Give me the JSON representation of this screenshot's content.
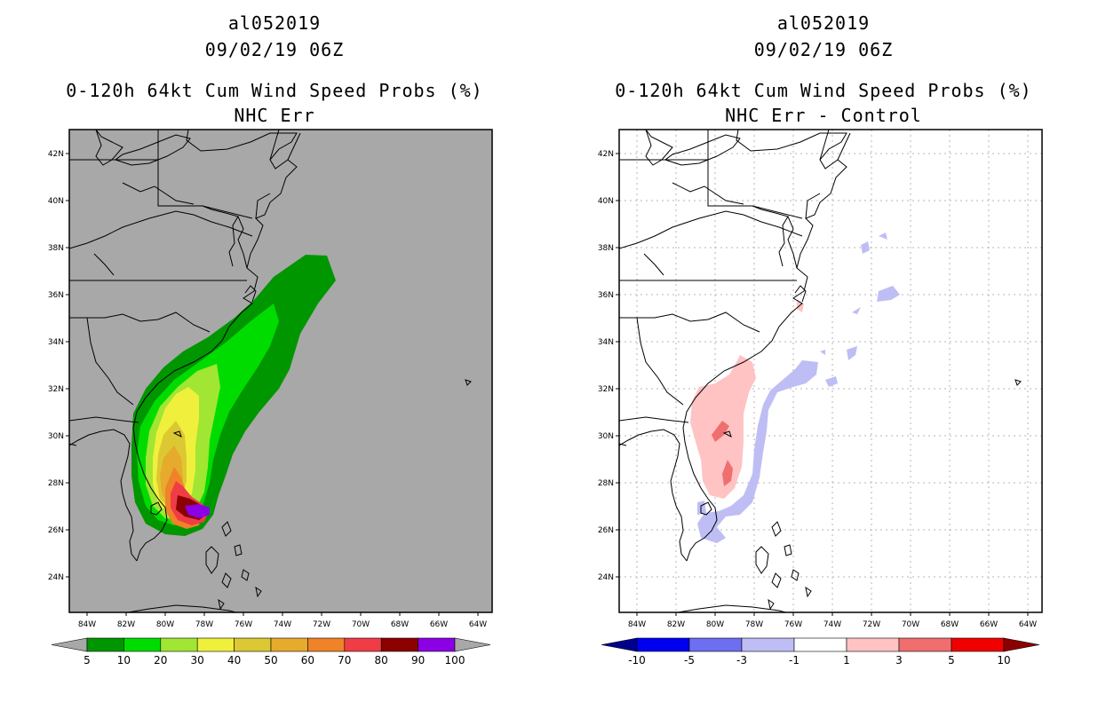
{
  "left": {
    "storm_id": "al052019",
    "datetime": "09/02/19 06Z",
    "product": "0-120h 64kt Cum Wind Speed Probs (%)",
    "subtitle": "NHC Err",
    "colorbar": {
      "labels": [
        "5",
        "10",
        "20",
        "30",
        "40",
        "50",
        "60",
        "70",
        "80",
        "90",
        "100"
      ],
      "colors": [
        "#a8a8a8",
        "#009600",
        "#00dc00",
        "#a0e632",
        "#f0f03c",
        "#dcc832",
        "#e6aa2d",
        "#f08228",
        "#f03c46",
        "#8c0000",
        "#8c00e6",
        "#a8a8a8"
      ]
    }
  },
  "right": {
    "storm_id": "al052019",
    "datetime": "09/02/19 06Z",
    "product": "0-120h 64kt Cum Wind Speed Probs (%)",
    "subtitle": "NHC Err - Control",
    "colorbar": {
      "labels": [
        "-10",
        "-5",
        "-3",
        "-1",
        "1",
        "3",
        "5",
        "10"
      ],
      "colors": [
        "#00008c",
        "#0000f0",
        "#6e6ef0",
        "#bebef5",
        "#ffffff",
        "#ffc3c3",
        "#f06e6e",
        "#f00000",
        "#8c0000"
      ]
    }
  },
  "axes": {
    "lat_labels": [
      "42N",
      "40N",
      "38N",
      "36N",
      "34N",
      "32N",
      "30N",
      "28N",
      "26N",
      "24N"
    ],
    "lon_labels": [
      "84W",
      "82W",
      "80W",
      "78W",
      "76W",
      "74W",
      "72W",
      "70W",
      "68W",
      "66W",
      "64W"
    ]
  },
  "colors": {
    "background": "#ffffff",
    "land_gray": "#a8a8a8",
    "coast": "#000000"
  }
}
